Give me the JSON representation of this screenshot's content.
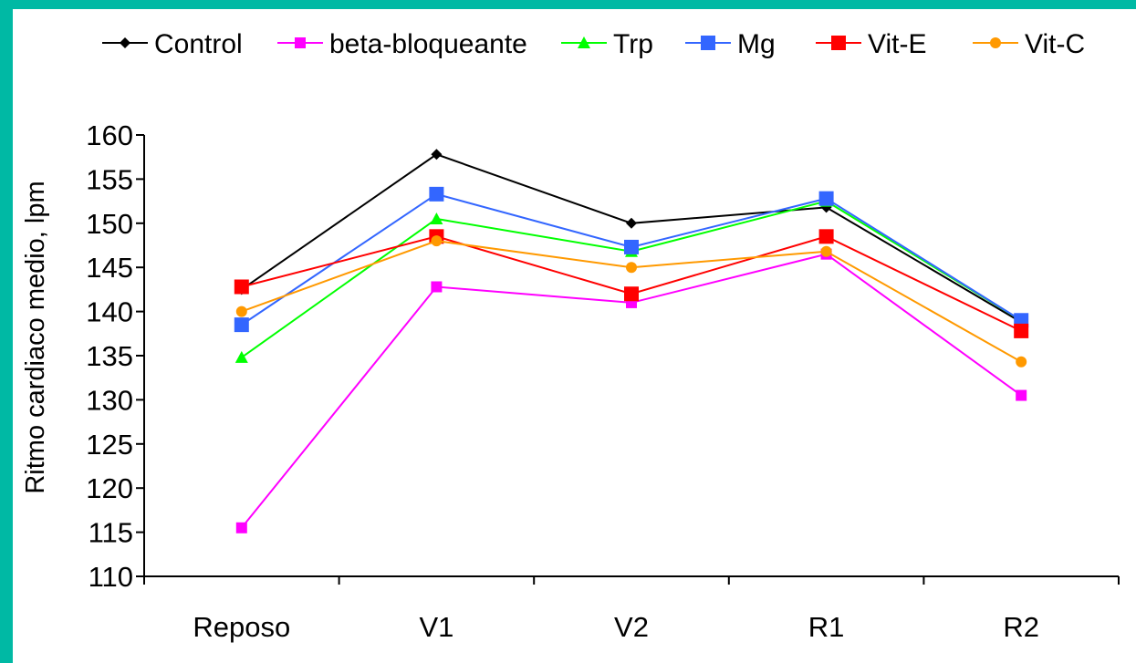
{
  "chart_data": {
    "type": "line",
    "title": "",
    "xlabel": "",
    "ylabel": "Ritmo cardiaco medio, lpm",
    "categories": [
      "Reposo",
      "V1",
      "V2",
      "R1",
      "R2"
    ],
    "ylim": [
      110,
      160
    ],
    "yticks": [
      110,
      115,
      120,
      125,
      130,
      135,
      140,
      145,
      150,
      155,
      160
    ],
    "grid": false,
    "legend_position": "top",
    "series": [
      {
        "name": "Control",
        "color": "#000000",
        "marker": "diamond",
        "values": [
          142.5,
          157.8,
          150.0,
          151.8,
          138.8
        ]
      },
      {
        "name": "beta-bloqueante",
        "color": "#ff00ff",
        "marker": "square-small",
        "values": [
          115.5,
          142.8,
          141.0,
          146.5,
          130.5
        ]
      },
      {
        "name": "Trp",
        "color": "#00ff00",
        "marker": "triangle",
        "values": [
          134.8,
          150.5,
          146.8,
          152.5,
          139.0
        ]
      },
      {
        "name": "Mg",
        "color": "#3366ff",
        "marker": "square",
        "values": [
          138.5,
          153.3,
          147.3,
          152.8,
          139.0
        ]
      },
      {
        "name": "Vit-E",
        "color": "#ff0000",
        "marker": "square",
        "values": [
          142.8,
          148.5,
          142.0,
          148.5,
          137.8
        ]
      },
      {
        "name": "Vit-C",
        "color": "#ff9900",
        "marker": "circle",
        "values": [
          140.0,
          148.0,
          145.0,
          146.8,
          134.3
        ]
      }
    ]
  }
}
